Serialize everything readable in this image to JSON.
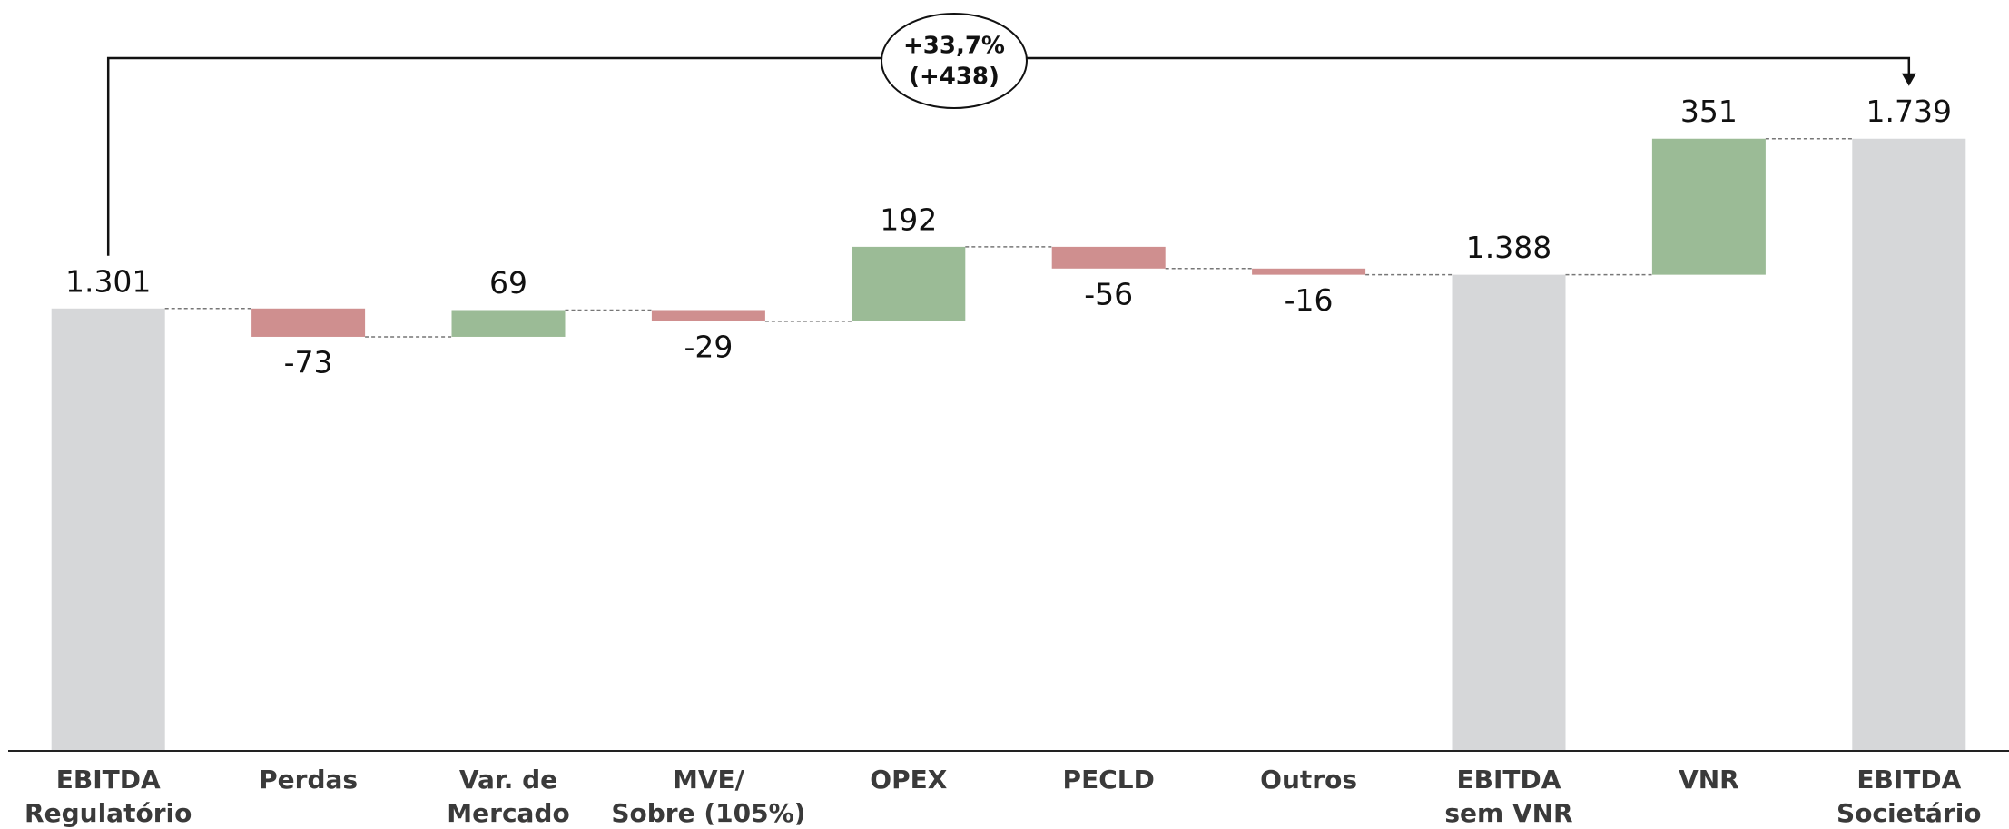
{
  "chart_data": {
    "type": "waterfall",
    "categories": [
      [
        "EBITDA",
        "Regulatório"
      ],
      [
        "Perdas"
      ],
      [
        "Var. de",
        "Mercado"
      ],
      [
        "MVE/",
        "Sobre (105%)"
      ],
      [
        "OPEX"
      ],
      [
        "PECLD"
      ],
      [
        "Outros"
      ],
      [
        "EBITDA",
        "sem VNR"
      ],
      [
        "VNR"
      ],
      [
        "EBITDA",
        "Societário"
      ]
    ],
    "values": [
      1301,
      -73,
      69,
      -29,
      192,
      -56,
      -16,
      1388,
      351,
      1739
    ],
    "value_labels": [
      "1.301",
      "-73",
      "69",
      "-29",
      "192",
      "-56",
      "-16",
      "1.388",
      "351",
      "1.739"
    ],
    "totals": [
      0,
      7,
      9
    ],
    "total_color": "#d6d7d9",
    "increase_color": "#9bbb96",
    "decrease_color": "#cf8f8f",
    "ylim": [
      160,
      1900
    ],
    "annotation": [
      "+33,7%",
      "(+438)"
    ]
  }
}
